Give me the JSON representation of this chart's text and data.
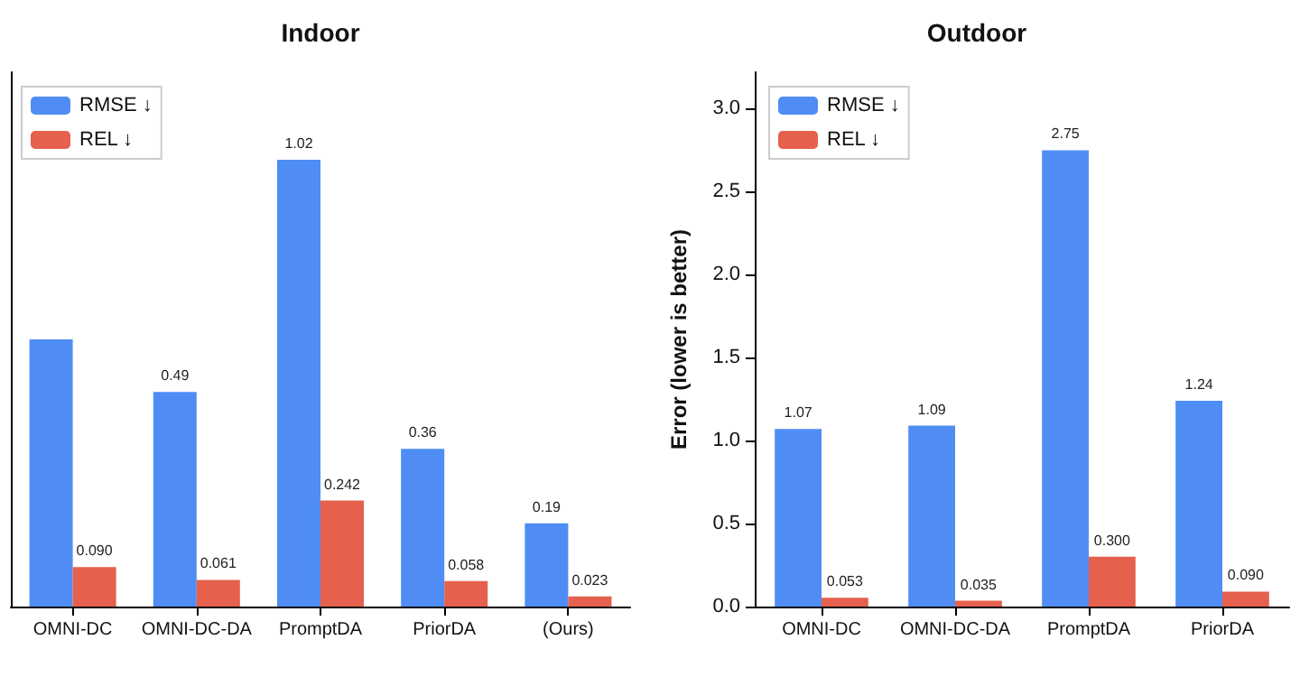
{
  "chart_data": [
    {
      "type": "bar",
      "title": "Indoor",
      "categories": [
        "OMNI-DC",
        "OMNI-DC-DA",
        "PromptDA",
        "PriorDA",
        "(Ours)"
      ],
      "ylim": [
        0,
        1.22
      ],
      "tick_labels": "x",
      "legend": "top left",
      "grid": false,
      "series": [
        {
          "name": "RMSE ↓",
          "color": "#4f8df5",
          "values": [
            0.61,
            0.49,
            1.02,
            0.36,
            0.19
          ],
          "value_labels": [
            null,
            "0.49",
            "1.02",
            "0.36",
            "0.19"
          ]
        },
        {
          "name": "REL ↓",
          "color": "#e5604d",
          "values": [
            0.09,
            0.061,
            0.242,
            0.058,
            0.023
          ],
          "value_labels": [
            "0.090",
            "0.061",
            "0.242",
            "0.058",
            "0.023"
          ]
        }
      ]
    },
    {
      "type": "bar",
      "title": "Outdoor",
      "ylabel": "Error (lower is better)",
      "categories": [
        "OMNI-DC",
        "OMNI-DC-DA",
        "PromptDA",
        "PriorDA"
      ],
      "ylim": [
        0,
        3.22
      ],
      "yticks": [
        {
          "value": 0,
          "label": "0.0"
        },
        0.5,
        {
          "value": 1,
          "label": "1.0"
        },
        1.5,
        {
          "value": 2,
          "label": "2.0"
        },
        2.5,
        {
          "value": 3,
          "label": "3.0"
        }
      ],
      "legend": "top left",
      "grid": false,
      "series": [
        {
          "name": "RMSE ↓",
          "color": "#4f8df5",
          "values": [
            1.07,
            1.09,
            2.75,
            1.24
          ],
          "value_labels": [
            "1.07",
            "1.09",
            "2.75",
            "1.24"
          ]
        },
        {
          "name": "REL ↓",
          "color": "#e5604d",
          "values": [
            0.053,
            0.035,
            0.3,
            0.09
          ],
          "value_labels": [
            "0.053",
            "0.035",
            "0.300",
            "0.090"
          ]
        }
      ]
    }
  ]
}
